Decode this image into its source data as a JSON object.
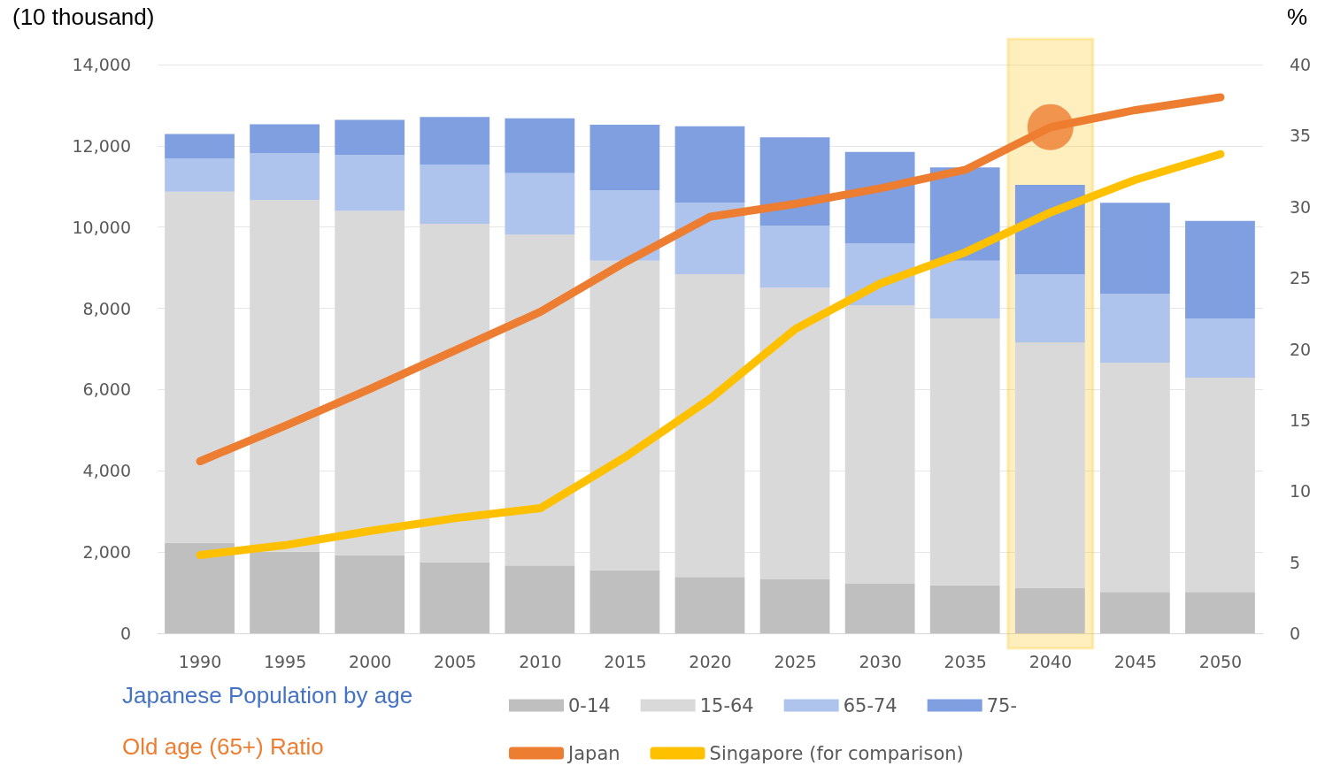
{
  "chart_data": {
    "type": "bar",
    "stacked": true,
    "ylabel": "(10 thousand)",
    "y2label": "%",
    "categories": [
      "1990",
      "1995",
      "2000",
      "2005",
      "2010",
      "2015",
      "2020",
      "2025",
      "2030",
      "2035",
      "2040",
      "2045",
      "2050"
    ],
    "series": [
      {
        "name": "0-14",
        "color": "#bfbfbf",
        "values": [
          2230,
          2010,
          1920,
          1750,
          1670,
          1550,
          1390,
          1330,
          1220,
          1180,
          1110,
          1020,
          1020
        ]
      },
      {
        "name": "15-64",
        "color": "#d9d9d9",
        "values": [
          8640,
          8660,
          8480,
          8330,
          8150,
          7620,
          7450,
          7180,
          6860,
          6570,
          6050,
          5640,
          5270
        ]
      },
      {
        "name": "65-74",
        "color": "#aec4ec",
        "values": [
          820,
          1150,
          1380,
          1460,
          1510,
          1740,
          1760,
          1530,
          1520,
          1420,
          1680,
          1700,
          1460
        ]
      },
      {
        "name": "75-",
        "color": "#7f9fe0",
        "values": [
          600,
          710,
          860,
          1170,
          1350,
          1610,
          1880,
          2170,
          2250,
          2300,
          2200,
          2240,
          2400
        ]
      },
      {
        "name": "Japan",
        "type": "line",
        "axis": "y2",
        "color": "#ed7d31",
        "values": [
          12.1,
          14.6,
          17.2,
          19.9,
          22.6,
          26.1,
          29.3,
          30.2,
          31.3,
          32.6,
          35.6,
          36.8,
          37.7
        ]
      },
      {
        "name": "Singapore (for comparison)",
        "type": "line",
        "axis": "y2",
        "color": "#ffc000",
        "values": [
          5.5,
          6.2,
          7.2,
          8.1,
          8.8,
          12.4,
          16.5,
          21.4,
          24.6,
          26.8,
          29.6,
          31.9,
          33.7
        ]
      },
      {
        "type": "scatter",
        "axis": "y2",
        "marker": "circle",
        "color": "#ed7d31",
        "values": [
          null,
          null,
          null,
          null,
          null,
          null,
          null,
          null,
          null,
          null,
          35.6,
          null,
          null
        ]
      }
    ],
    "ylim": [
      0,
      14000
    ],
    "yticks": [
      0,
      {
        "value": 2000,
        "label": "2,000"
      },
      {
        "value": 4000,
        "label": "4,000"
      },
      {
        "value": 6000,
        "label": "6,000"
      },
      {
        "value": 8000,
        "label": "8,000"
      },
      {
        "value": 10000,
        "label": "10,000"
      },
      {
        "value": 12000,
        "label": "12,000"
      },
      {
        "value": 14000,
        "label": "14,000"
      }
    ],
    "y2lim": [
      0,
      40
    ],
    "y2ticks": [
      0,
      5,
      10,
      15,
      20,
      25,
      30,
      35,
      40
    ],
    "bands": [
      {
        "axis": "x",
        "from": "2040",
        "to": "2040",
        "color": "#ffc000"
      }
    ],
    "annotations": [
      "Japanese Population by age",
      "Old age (65+) Ratio"
    ],
    "grid": "y",
    "legend": "bottom",
    "marker": "none",
    "line_style": "solid"
  }
}
